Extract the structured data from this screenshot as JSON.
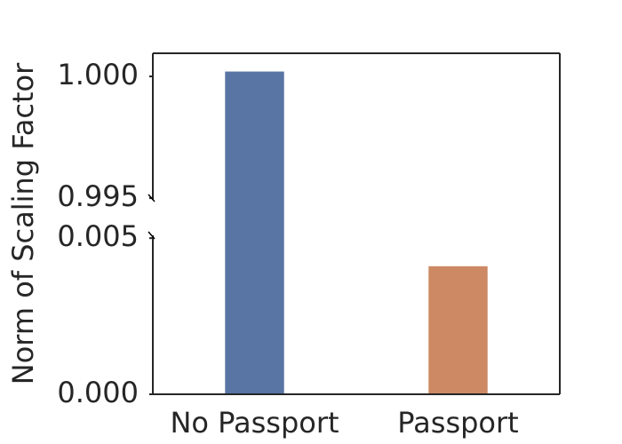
{
  "chart_data": {
    "type": "bar",
    "y_label": "Norm of Scaling Factor",
    "categories": [
      "No Passport",
      "Passport"
    ],
    "values": [
      1.0002,
      0.0041
    ],
    "colors": [
      "#5875a4",
      "#cc8963"
    ],
    "y_segments": [
      {
        "ylim": [
          0,
          0.00509
        ],
        "yticks": [
          {
            "value": 0,
            "label": "0.000"
          },
          {
            "value": 0.005,
            "label": "0.005"
          }
        ]
      },
      {
        "ylim": [
          0.99493,
          1.00095
        ],
        "yticks": [
          {
            "value": 0.995,
            "label": "0.995"
          },
          {
            "value": 1.0,
            "label": "1.000"
          }
        ]
      }
    ],
    "grid": false
  }
}
